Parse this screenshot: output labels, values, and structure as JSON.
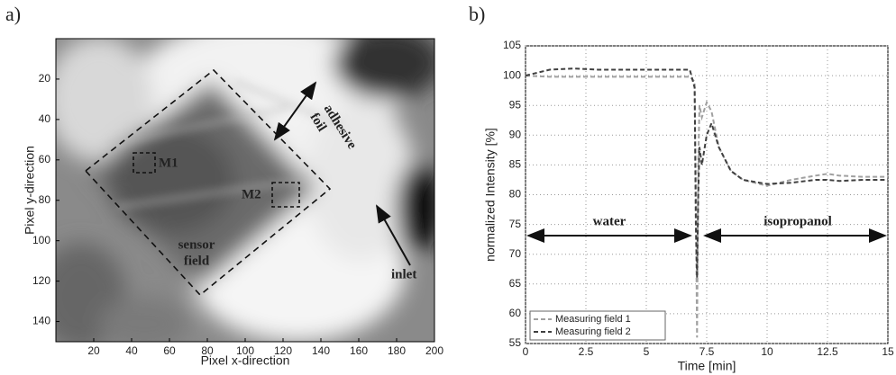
{
  "panel_labels": [
    "a)",
    "b)"
  ],
  "chart_data": [
    {
      "type": "image",
      "xlabel": "Pixel x-direction",
      "ylabel": "Pixel y-direction",
      "xlim": [
        0,
        200
      ],
      "ylim": [
        0,
        150
      ],
      "y_reversed": true,
      "xticks": [
        20,
        40,
        60,
        80,
        100,
        120,
        140,
        160,
        180,
        200
      ],
      "yticks": [
        20,
        40,
        60,
        80,
        100,
        120,
        140
      ],
      "annotations": [
        [
          "adhesive",
          "foil"
        ],
        [
          "M1"
        ],
        [
          "M2"
        ],
        [
          "sensor",
          "field"
        ],
        [
          "inlet"
        ]
      ]
    },
    {
      "type": "line",
      "xlabel": "Time [min]",
      "ylabel": "normalized Intensity [%]",
      "x": [
        0,
        1,
        2,
        3,
        4,
        5,
        6,
        6.8,
        7,
        7.05,
        7.1,
        7.15,
        7.2,
        7.3,
        7.5,
        7.7,
        8,
        8.5,
        9,
        10,
        11,
        12,
        12.5,
        13,
        14,
        15
      ],
      "series": [
        {
          "name": "Measuring field 1",
          "color": "#a0a0a0",
          "values": [
            100,
            99.8,
            99.8,
            99.8,
            99.8,
            99.8,
            99.8,
            99.8,
            99,
            80,
            56,
            85,
            95,
            93,
            95.5,
            94,
            88,
            84,
            82.5,
            81.5,
            82.5,
            83.2,
            83.5,
            83.2,
            83,
            83
          ]
        },
        {
          "name": "Measuring field 2",
          "color": "#404040",
          "values": [
            100,
            101,
            101.2,
            101,
            101,
            101,
            101,
            101,
            98,
            75,
            66,
            80,
            88,
            85,
            90,
            92,
            88,
            84,
            82.5,
            81.8,
            82,
            82.5,
            82.5,
            82.3,
            82.5,
            82.5
          ]
        }
      ],
      "xlim": [
        0,
        15
      ],
      "ylim": [
        55,
        105
      ],
      "xticks": [
        0,
        2.5,
        5,
        7.5,
        10,
        12.5,
        15
      ],
      "yticks": [
        55,
        60,
        65,
        70,
        75,
        80,
        85,
        90,
        95,
        100,
        105
      ],
      "grid": true,
      "legend": "lower left",
      "dashed": true,
      "annotations": [
        "water",
        "isopropanol"
      ]
    }
  ]
}
